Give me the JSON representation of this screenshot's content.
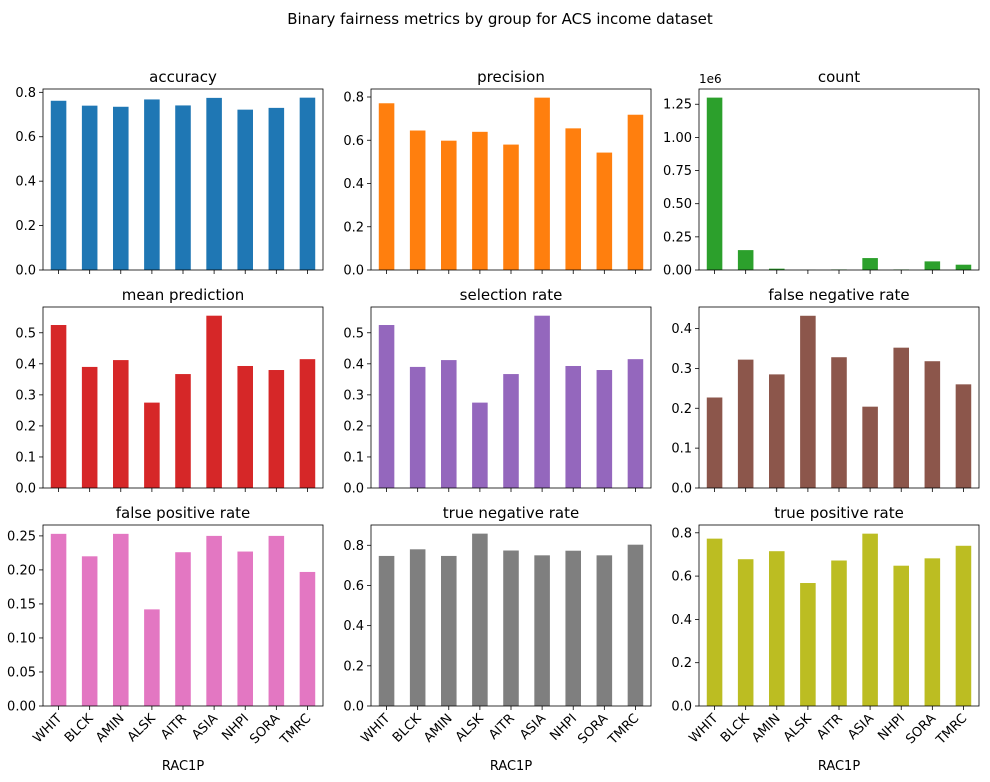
{
  "figure": {
    "suptitle": "Binary fairness metrics by group for ACS income dataset",
    "xlabel": "RAC1P"
  },
  "chart_data": [
    {
      "type": "bar",
      "title": "accuracy",
      "color": "#1f77b4",
      "categories": [
        "WHIT",
        "BLCK",
        "AMIN",
        "ALSK",
        "AITR",
        "ASIA",
        "NHPI",
        "SORA",
        "TMRC"
      ],
      "values": [
        0.762,
        0.74,
        0.735,
        0.768,
        0.741,
        0.775,
        0.722,
        0.73,
        0.776
      ],
      "ylim": [
        0,
        0.815
      ],
      "yticks": [
        0.0,
        0.2,
        0.4,
        0.6,
        0.8
      ],
      "ytick_labels": [
        "0.0",
        "0.2",
        "0.4",
        "0.6",
        "0.8"
      ]
    },
    {
      "type": "bar",
      "title": "precision",
      "color": "#ff7f0e",
      "categories": [
        "WHIT",
        "BLCK",
        "AMIN",
        "ALSK",
        "AITR",
        "ASIA",
        "NHPI",
        "SORA",
        "TMRC"
      ],
      "values": [
        0.771,
        0.645,
        0.598,
        0.639,
        0.58,
        0.797,
        0.655,
        0.543,
        0.718
      ],
      "ylim": [
        0,
        0.837
      ],
      "yticks": [
        0.0,
        0.2,
        0.4,
        0.6,
        0.8
      ],
      "ytick_labels": [
        "0.0",
        "0.2",
        "0.4",
        "0.6",
        "0.8"
      ]
    },
    {
      "type": "bar",
      "title": "count",
      "color": "#2ca02c",
      "categories": [
        "WHIT",
        "BLCK",
        "AMIN",
        "ALSK",
        "AITR",
        "ASIA",
        "NHPI",
        "SORA",
        "TMRC"
      ],
      "values": [
        1.3,
        0.15,
        0.01,
        0.001,
        0.004,
        0.09,
        0.004,
        0.065,
        0.04
      ],
      "ylim": [
        0,
        1.365
      ],
      "yticks": [
        0.0,
        0.25,
        0.5,
        0.75,
        1.0,
        1.25
      ],
      "ytick_labels": [
        "0.00",
        "0.25",
        "0.50",
        "0.75",
        "1.00",
        "1.25"
      ],
      "offset_label": "1e6"
    },
    {
      "type": "bar",
      "title": "mean prediction",
      "color": "#d62728",
      "categories": [
        "WHIT",
        "BLCK",
        "AMIN",
        "ALSK",
        "AITR",
        "ASIA",
        "NHPI",
        "SORA",
        "TMRC"
      ],
      "values": [
        0.525,
        0.39,
        0.412,
        0.275,
        0.367,
        0.555,
        0.393,
        0.38,
        0.415
      ],
      "ylim": [
        0,
        0.583
      ],
      "yticks": [
        0.0,
        0.1,
        0.2,
        0.3,
        0.4,
        0.5
      ],
      "ytick_labels": [
        "0.0",
        "0.1",
        "0.2",
        "0.3",
        "0.4",
        "0.5"
      ]
    },
    {
      "type": "bar",
      "title": "selection rate",
      "color": "#9467bd",
      "categories": [
        "WHIT",
        "BLCK",
        "AMIN",
        "ALSK",
        "AITR",
        "ASIA",
        "NHPI",
        "SORA",
        "TMRC"
      ],
      "values": [
        0.525,
        0.39,
        0.412,
        0.275,
        0.367,
        0.555,
        0.393,
        0.38,
        0.415
      ],
      "ylim": [
        0,
        0.583
      ],
      "yticks": [
        0.0,
        0.1,
        0.2,
        0.3,
        0.4,
        0.5
      ],
      "ytick_labels": [
        "0.0",
        "0.1",
        "0.2",
        "0.3",
        "0.4",
        "0.5"
      ]
    },
    {
      "type": "bar",
      "title": "false negative rate",
      "color": "#8c564b",
      "categories": [
        "WHIT",
        "BLCK",
        "AMIN",
        "ALSK",
        "AITR",
        "ASIA",
        "NHPI",
        "SORA",
        "TMRC"
      ],
      "values": [
        0.227,
        0.322,
        0.285,
        0.432,
        0.328,
        0.204,
        0.352,
        0.318,
        0.26
      ],
      "ylim": [
        0,
        0.454
      ],
      "yticks": [
        0.0,
        0.1,
        0.2,
        0.3,
        0.4
      ],
      "ytick_labels": [
        "0.0",
        "0.1",
        "0.2",
        "0.3",
        "0.4"
      ]
    },
    {
      "type": "bar",
      "title": "false positive rate",
      "color": "#e377c2",
      "categories": [
        "WHIT",
        "BLCK",
        "AMIN",
        "ALSK",
        "AITR",
        "ASIA",
        "NHPI",
        "SORA",
        "TMRC"
      ],
      "values": [
        0.253,
        0.22,
        0.253,
        0.142,
        0.226,
        0.25,
        0.227,
        0.25,
        0.197
      ],
      "ylim": [
        0,
        0.266
      ],
      "yticks": [
        0.0,
        0.05,
        0.1,
        0.15,
        0.2,
        0.25
      ],
      "ytick_labels": [
        "0.00",
        "0.05",
        "0.10",
        "0.15",
        "0.20",
        "0.25"
      ]
    },
    {
      "type": "bar",
      "title": "true negative rate",
      "color": "#7f7f7f",
      "categories": [
        "WHIT",
        "BLCK",
        "AMIN",
        "ALSK",
        "AITR",
        "ASIA",
        "NHPI",
        "SORA",
        "TMRC"
      ],
      "values": [
        0.747,
        0.78,
        0.747,
        0.858,
        0.774,
        0.75,
        0.773,
        0.75,
        0.803
      ],
      "ylim": [
        0,
        0.901
      ],
      "yticks": [
        0.0,
        0.2,
        0.4,
        0.6,
        0.8
      ],
      "ytick_labels": [
        "0.0",
        "0.2",
        "0.4",
        "0.6",
        "0.8"
      ]
    },
    {
      "type": "bar",
      "title": "true positive rate",
      "color": "#bcbd22",
      "categories": [
        "WHIT",
        "BLCK",
        "AMIN",
        "ALSK",
        "AITR",
        "ASIA",
        "NHPI",
        "SORA",
        "TMRC"
      ],
      "values": [
        0.773,
        0.678,
        0.715,
        0.568,
        0.672,
        0.796,
        0.648,
        0.682,
        0.74
      ],
      "ylim": [
        0,
        0.836
      ],
      "yticks": [
        0.0,
        0.2,
        0.4,
        0.6,
        0.8
      ],
      "ytick_labels": [
        "0.0",
        "0.2",
        "0.4",
        "0.6",
        "0.8"
      ]
    }
  ]
}
